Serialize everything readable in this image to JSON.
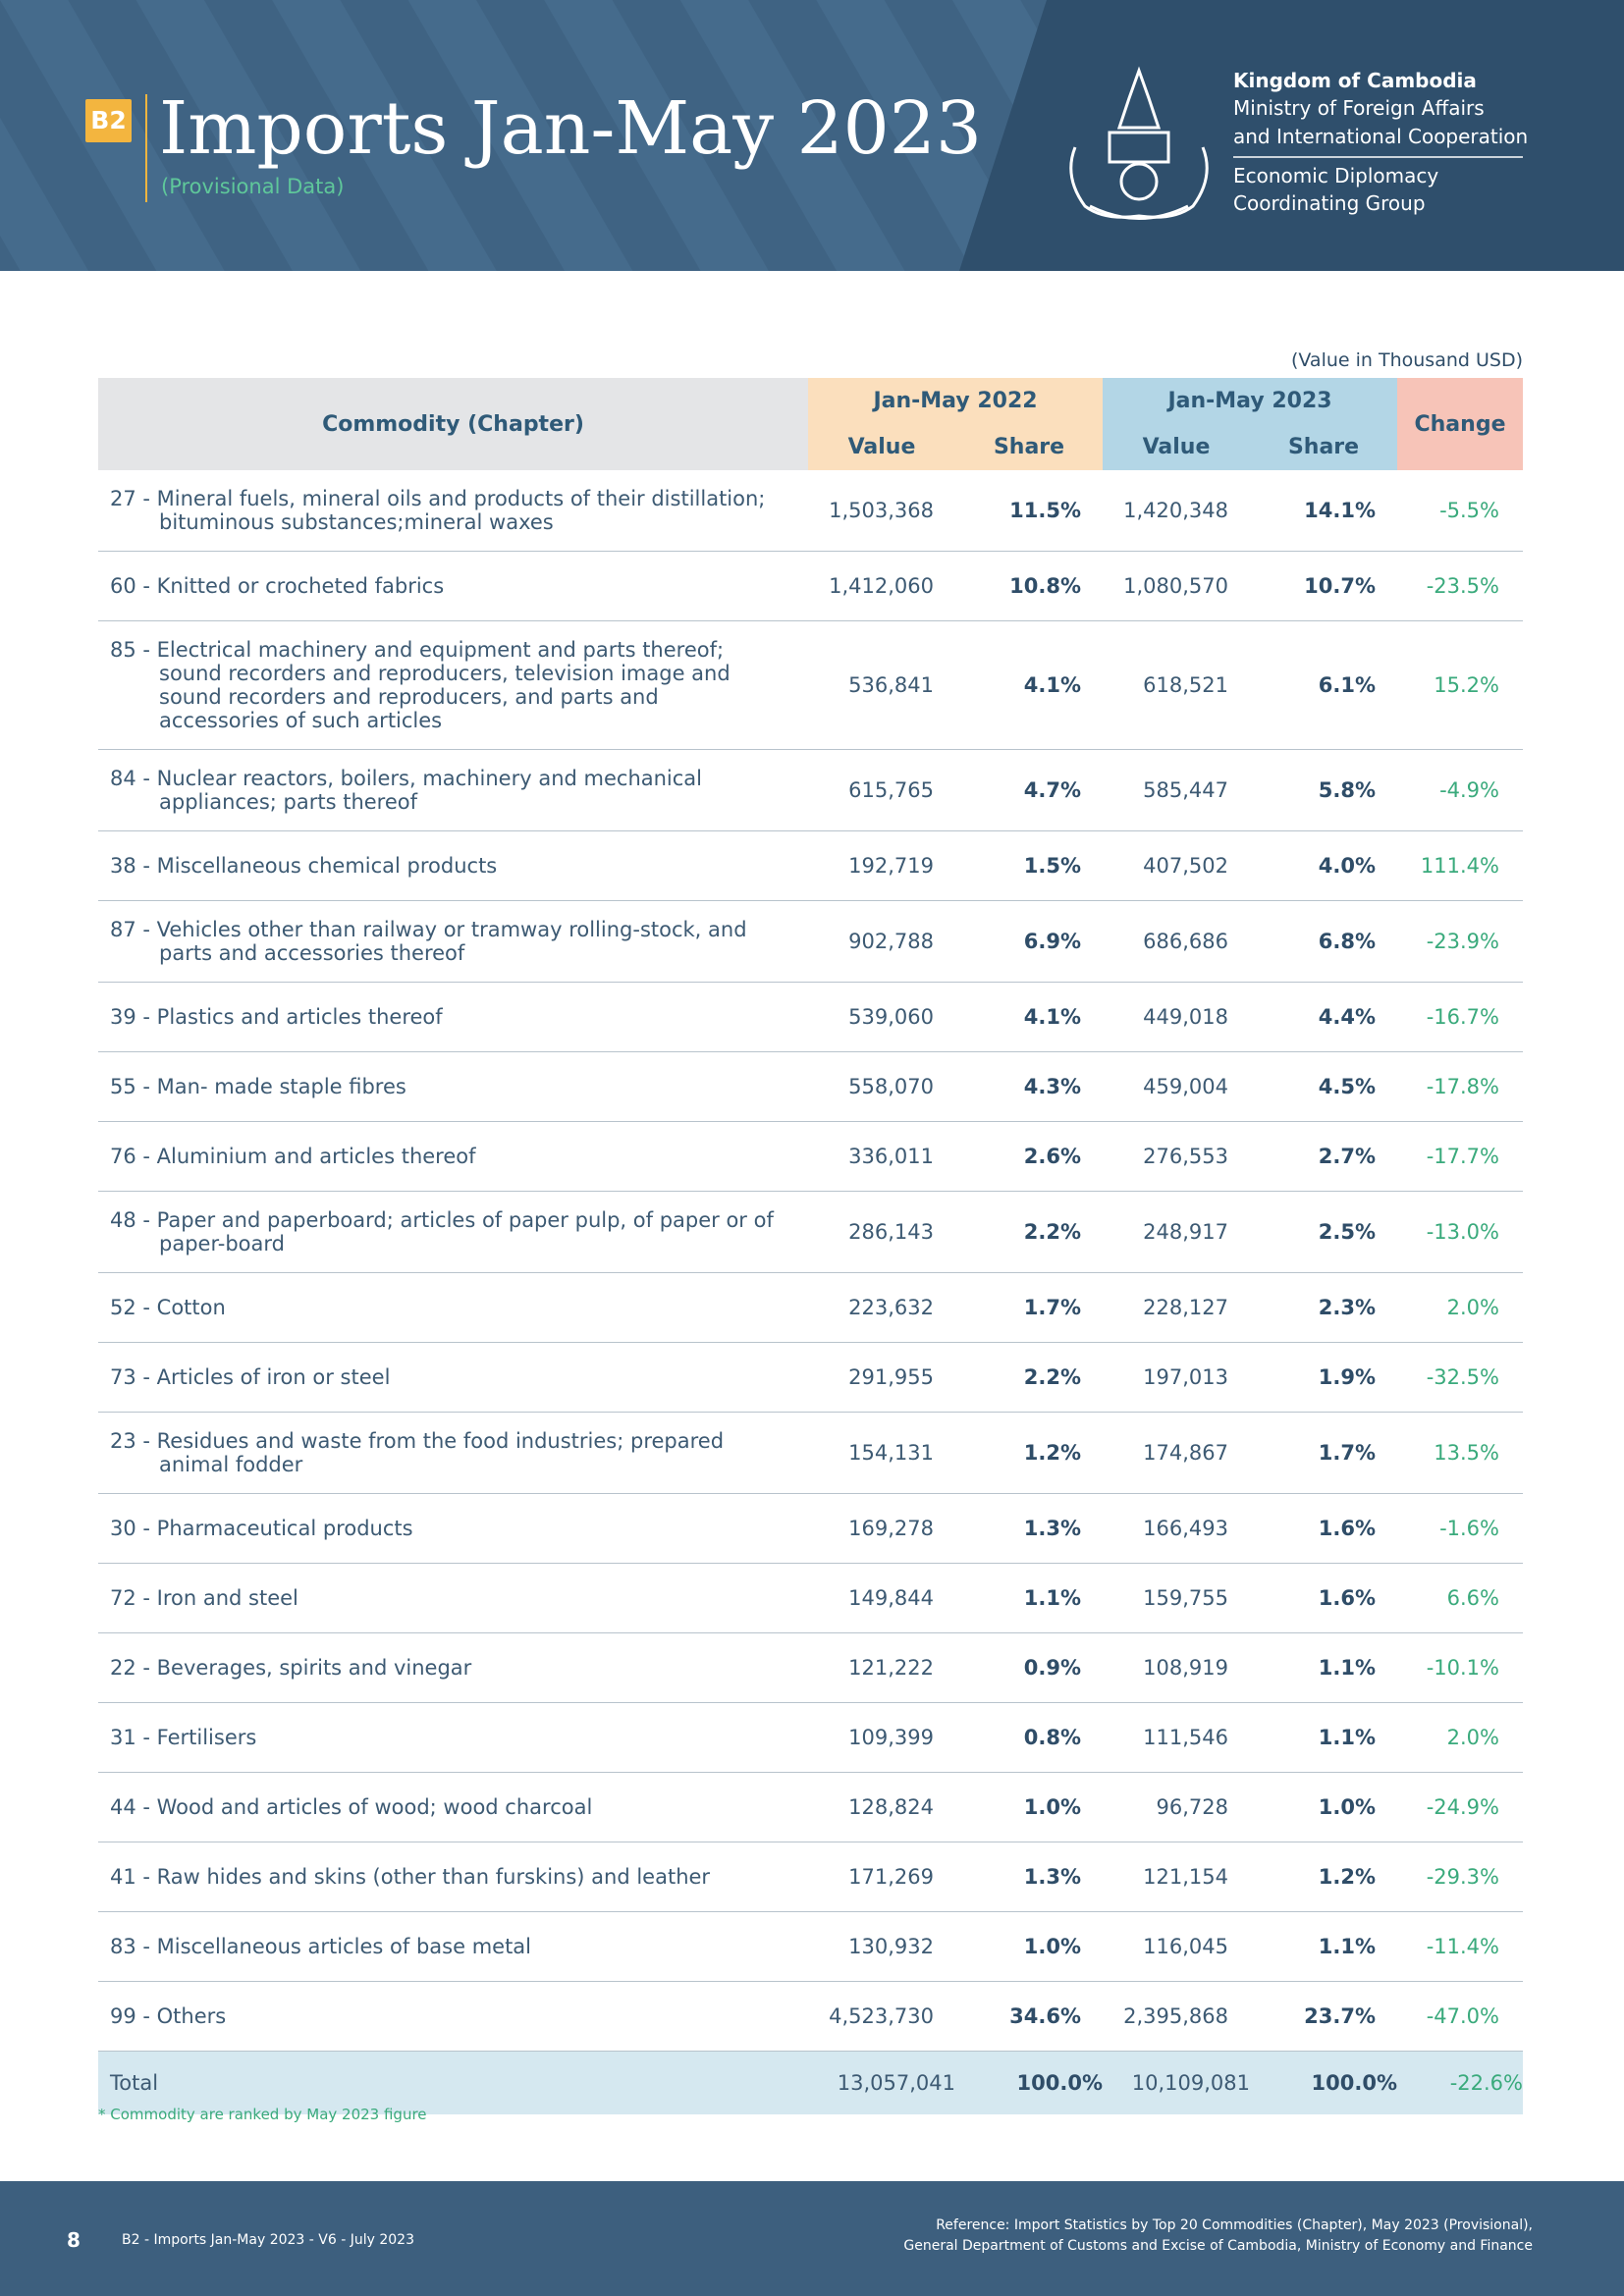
{
  "header": {
    "badge": "B2",
    "title": "Imports Jan-May 2023",
    "subtitle": "(Provisional Data)",
    "org": [
      "Kingdom of Cambodia",
      "Ministry of Foreign Affairs",
      "and International Cooperation"
    ],
    "group": [
      "Economic Diplomacy",
      "Coordinating Group"
    ]
  },
  "unit": "(Value in Thousand USD)",
  "table": {
    "headers": {
      "commodity": "Commodity (Chapter)",
      "y2022": "Jan-May 2022",
      "y2023": "Jan-May 2023",
      "change": "Change",
      "sub": [
        "Value",
        "Share",
        "Value",
        "Share"
      ]
    },
    "rows": [
      [
        "27 - Mineral fuels, mineral oils and products of their distillation; bituminous substances;mineral waxes",
        "1,503,368",
        "11.5%",
        "1,420,348",
        "14.1%",
        "-5.5%"
      ],
      [
        "60 - Knitted or crocheted fabrics",
        "1,412,060",
        "10.8%",
        "1,080,570",
        "10.7%",
        "-23.5%"
      ],
      [
        "85 - Electrical machinery and equipment and parts thereof; sound recorders and reproducers, television image and sound recorders and reproducers, and parts and accessories of such articles",
        "536,841",
        "4.1%",
        "618,521",
        "6.1%",
        "15.2%"
      ],
      [
        "84 - Nuclear reactors, boilers, machinery and mechanical appliances; parts thereof",
        "615,765",
        "4.7%",
        "585,447",
        "5.8%",
        "-4.9%"
      ],
      [
        "38 - Miscellaneous chemical products",
        "192,719",
        "1.5%",
        "407,502",
        "4.0%",
        "111.4%"
      ],
      [
        "87 - Vehicles other than railway or tramway rolling-stock, and parts and accessories thereof",
        "902,788",
        "6.9%",
        "686,686",
        "6.8%",
        "-23.9%"
      ],
      [
        "39 - Plastics and articles thereof",
        "539,060",
        "4.1%",
        "449,018",
        "4.4%",
        "-16.7%"
      ],
      [
        "55 - Man- made staple fibres",
        "558,070",
        "4.3%",
        "459,004",
        "4.5%",
        "-17.8%"
      ],
      [
        "76 - Aluminium and articles thereof",
        "336,011",
        "2.6%",
        "276,553",
        "2.7%",
        "-17.7%"
      ],
      [
        "48 - Paper and paperboard; articles of paper pulp, of paper or of paper-board",
        "286,143",
        "2.2%",
        "248,917",
        "2.5%",
        "-13.0%"
      ],
      [
        "52 - Cotton",
        "223,632",
        "1.7%",
        "228,127",
        "2.3%",
        "2.0%"
      ],
      [
        "73 - Articles of iron or steel",
        "291,955",
        "2.2%",
        "197,013",
        "1.9%",
        "-32.5%"
      ],
      [
        "23 - Residues and waste from the food industries; prepared animal fodder",
        "154,131",
        "1.2%",
        "174,867",
        "1.7%",
        "13.5%"
      ],
      [
        "30 - Pharmaceutical products",
        "169,278",
        "1.3%",
        "166,493",
        "1.6%",
        "-1.6%"
      ],
      [
        "72 - Iron and steel",
        "149,844",
        "1.1%",
        "159,755",
        "1.6%",
        "6.6%"
      ],
      [
        "22 - Beverages, spirits and vinegar",
        "121,222",
        "0.9%",
        "108,919",
        "1.1%",
        "-10.1%"
      ],
      [
        "31 - Fertilisers",
        "109,399",
        "0.8%",
        "111,546",
        "1.1%",
        "2.0%"
      ],
      [
        "44 - Wood and articles of wood; wood charcoal",
        "128,824",
        "1.0%",
        "96,728",
        "1.0%",
        "-24.9%"
      ],
      [
        "41 - Raw hides and skins (other than furskins) and leather",
        "171,269",
        "1.3%",
        "121,154",
        "1.2%",
        "-29.3%"
      ],
      [
        "83 - Miscellaneous articles of base metal",
        "130,932",
        "1.0%",
        "116,045",
        "1.1%",
        "-11.4%"
      ],
      [
        "99 - Others",
        "4,523,730",
        "34.6%",
        "2,395,868",
        "23.7%",
        "-47.0%"
      ]
    ],
    "total": [
      "Total",
      "13,057,041",
      "100.0%",
      "10,109,081",
      "100.0%",
      "-22.6%"
    ]
  },
  "footnote": "* Commodity are ranked by May 2023 figure",
  "footer": {
    "page": "8",
    "doc": "B2 - Imports Jan-May 2023 - V6 - July 2023",
    "reference": [
      "Reference: Import Statistics by Top 20 Commodities (Chapter), May 2023  (Provisional),",
      "General Department of Customs and Excise of Cambodia, Ministry of Economy and Finance"
    ]
  }
}
